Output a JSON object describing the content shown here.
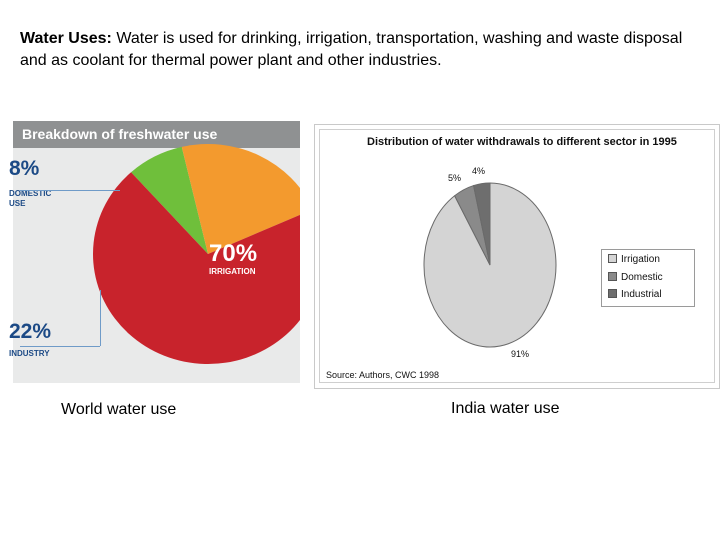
{
  "intro": {
    "heading": "Water Uses:",
    "text": " Water is used for drinking, irrigation, transportation, washing and waste disposal and as coolant for thermal power plant and other industries."
  },
  "captions": {
    "world": "World water use",
    "india": "India water use"
  },
  "colors": {
    "irrigation": "#c8232c",
    "domestic": "#6fbf3b",
    "industry": "#f39a2e",
    "header": "#8f9192",
    "stat_text": "#1c4a86",
    "india_irrigation": "#d4d4d4",
    "india_domestic": "#8a8a8a",
    "india_industrial": "#6e6e6e"
  },
  "chart_data": [
    {
      "type": "pie",
      "title": "Breakdown of freshwater use",
      "slices": [
        {
          "label": "IRRIGATION",
          "pct_label": "70%",
          "value": 70
        },
        {
          "label": "DOMESTIC USE",
          "pct_label": "8%",
          "value": 8
        },
        {
          "label": "INDUSTRY",
          "pct_label": "22%",
          "value": 22
        }
      ]
    },
    {
      "type": "pie",
      "title": "Distribution of water withdrawals to different sector in 1995",
      "source": "Source: Authors, CWC 1998",
      "slices": [
        {
          "label": "Irrigation",
          "pct_label": "91%",
          "value": 91
        },
        {
          "label": "Domestic",
          "pct_label": "5%",
          "value": 5
        },
        {
          "label": "Industrial",
          "pct_label": "4%",
          "value": 4
        }
      ],
      "legend_position": "right"
    }
  ]
}
